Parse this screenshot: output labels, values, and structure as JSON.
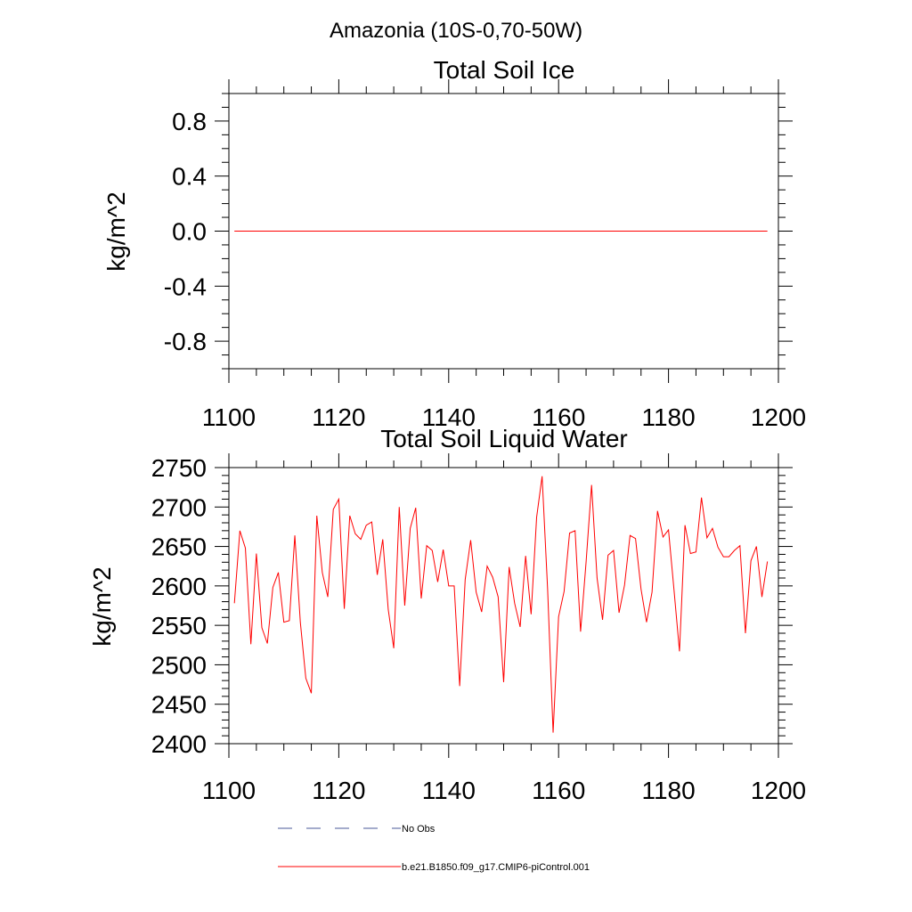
{
  "page_title": "Amazonia (10S-0,70-50W)",
  "chart_data": [
    {
      "type": "line",
      "title": "Total Soil Ice",
      "xlabel": "",
      "ylabel": "kg/m^2",
      "xlim": [
        1100,
        1200
      ],
      "ylim": [
        -1.0,
        1.0
      ],
      "xticks": [
        1100,
        1120,
        1140,
        1160,
        1180,
        1200
      ],
      "xtick_labels": [
        "1100",
        "1120",
        "1140",
        "1160",
        "1180",
        "1200"
      ],
      "yticks": [
        0.8,
        0.4,
        0.0,
        -0.4,
        -0.8
      ],
      "ytick_labels": [
        "0.8",
        "0.4",
        "0.0",
        "-0.4",
        "-0.8"
      ],
      "series": [
        {
          "name": "b.e21.B1850.f09_g17.CMIP6-piControl.001",
          "color": "#ff0000",
          "x": [
            1101,
            1198
          ],
          "values": [
            0.0,
            0.0
          ]
        }
      ]
    },
    {
      "type": "line",
      "title": "Total Soil Liquid Water",
      "xlabel": "",
      "ylabel": "kg/m^2",
      "xlim": [
        1100,
        1200
      ],
      "ylim": [
        2400,
        2750
      ],
      "xticks": [
        1100,
        1120,
        1140,
        1160,
        1180,
        1200
      ],
      "xtick_labels": [
        "1100",
        "1120",
        "1140",
        "1160",
        "1180",
        "1200"
      ],
      "yticks": [
        2750,
        2700,
        2650,
        2600,
        2550,
        2500,
        2450,
        2400
      ],
      "ytick_labels": [
        "2750",
        "2700",
        "2650",
        "2600",
        "2550",
        "2500",
        "2450",
        "2400"
      ],
      "series": [
        {
          "name": "b.e21.B1850.f09_g17.CMIP6-piControl.001",
          "color": "#ff0000",
          "x_start": 1101,
          "values": [
            2578,
            2670,
            2648,
            2526,
            2641,
            2547,
            2527,
            2598,
            2617,
            2554,
            2556,
            2664,
            2554,
            2483,
            2464,
            2689,
            2617,
            2586,
            2697,
            2710,
            2571,
            2689,
            2666,
            2659,
            2677,
            2681,
            2614,
            2659,
            2570,
            2521,
            2700,
            2575,
            2673,
            2699,
            2584,
            2651,
            2645,
            2605,
            2646,
            2600,
            2600,
            2473,
            2608,
            2658,
            2592,
            2567,
            2625,
            2611,
            2586,
            2478,
            2624,
            2578,
            2548,
            2638,
            2564,
            2687,
            2739,
            2596,
            2414,
            2561,
            2593,
            2667,
            2670,
            2542,
            2630,
            2728,
            2610,
            2557,
            2639,
            2645,
            2566,
            2601,
            2664,
            2660,
            2596,
            2554,
            2592,
            2695,
            2662,
            2671,
            2595,
            2517,
            2677,
            2641,
            2643,
            2712,
            2661,
            2673,
            2649,
            2637,
            2637,
            2645,
            2651,
            2540,
            2632,
            2650,
            2586,
            2631
          ]
        }
      ]
    }
  ],
  "legend": [
    {
      "label": "No Obs",
      "color": "#4a5a9a",
      "style": "dashed"
    },
    {
      "label": "b.e21.B1850.f09_g17.CMIP6-piControl.001",
      "color": "#ff0000",
      "style": "solid"
    }
  ]
}
